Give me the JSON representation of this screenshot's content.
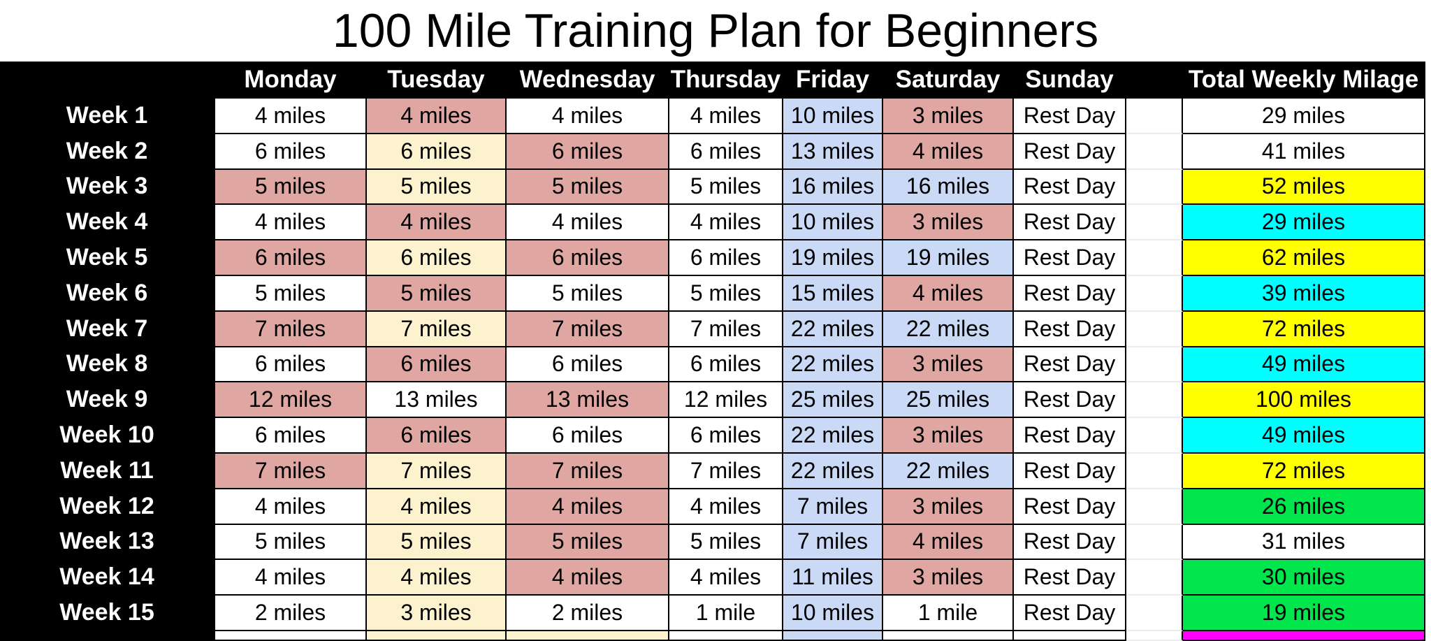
{
  "title": "100 Mile Training Plan for Beginners",
  "columns": {
    "week": "",
    "days": [
      "Monday",
      "Tuesday",
      "Wednesday",
      "Thursday",
      "Friday",
      "Saturday",
      "Sunday"
    ],
    "gap": "",
    "total": "Total Weekly Milage"
  },
  "palette": {
    "header_bg": "#000000",
    "header_text": "#ffffff",
    "grid_line": "#000000",
    "white": "#ffffff",
    "pink": "#e0a7a2",
    "cream": "#fdf2ce",
    "blue": "#c9d9f6",
    "yellow": "#ffff00",
    "cyan": "#00ffff",
    "green": "#00e64c",
    "magenta": "#ff00ff"
  },
  "weeks": [
    {
      "label": "Week 1",
      "days": [
        [
          "4 miles",
          "white"
        ],
        [
          "4 miles",
          "pink"
        ],
        [
          "4 miles",
          "white"
        ],
        [
          "4 miles",
          "white"
        ],
        [
          "10 miles",
          "blue"
        ],
        [
          "3 miles",
          "pink"
        ],
        [
          "Rest Day",
          "white"
        ]
      ],
      "total": [
        "29 miles",
        "white"
      ]
    },
    {
      "label": "Week 2",
      "days": [
        [
          "6 miles",
          "white"
        ],
        [
          "6 miles",
          "cream"
        ],
        [
          "6 miles",
          "pink"
        ],
        [
          "6 miles",
          "white"
        ],
        [
          "13 miles",
          "blue"
        ],
        [
          "4 miles",
          "pink"
        ],
        [
          "Rest Day",
          "white"
        ]
      ],
      "total": [
        "41 miles",
        "white"
      ]
    },
    {
      "label": "Week 3",
      "days": [
        [
          "5 miles",
          "pink"
        ],
        [
          "5 miles",
          "cream"
        ],
        [
          "5 miles",
          "pink"
        ],
        [
          "5 miles",
          "white"
        ],
        [
          "16 miles",
          "blue"
        ],
        [
          "16 miles",
          "blue"
        ],
        [
          "Rest Day",
          "white"
        ]
      ],
      "total": [
        "52 miles",
        "yellow"
      ]
    },
    {
      "label": "Week 4",
      "days": [
        [
          "4 miles",
          "white"
        ],
        [
          "4 miles",
          "pink"
        ],
        [
          "4 miles",
          "white"
        ],
        [
          "4 miles",
          "white"
        ],
        [
          "10 miles",
          "blue"
        ],
        [
          "3 miles",
          "pink"
        ],
        [
          "Rest Day",
          "white"
        ]
      ],
      "total": [
        "29 miles",
        "cyan"
      ]
    },
    {
      "label": "Week 5",
      "days": [
        [
          "6 miles",
          "pink"
        ],
        [
          "6 miles",
          "cream"
        ],
        [
          "6 miles",
          "pink"
        ],
        [
          "6 miles",
          "white"
        ],
        [
          "19 miles",
          "blue"
        ],
        [
          "19 miles",
          "blue"
        ],
        [
          "Rest Day",
          "white"
        ]
      ],
      "total": [
        "62 miles",
        "yellow"
      ]
    },
    {
      "label": "Week 6",
      "days": [
        [
          "5 miles",
          "white"
        ],
        [
          "5 miles",
          "pink"
        ],
        [
          "5 miles",
          "white"
        ],
        [
          "5 miles",
          "white"
        ],
        [
          "15 miles",
          "blue"
        ],
        [
          "4 miles",
          "pink"
        ],
        [
          "Rest Day",
          "white"
        ]
      ],
      "total": [
        "39 miles",
        "cyan"
      ]
    },
    {
      "label": "Week 7",
      "days": [
        [
          "7 miles",
          "pink"
        ],
        [
          "7 miles",
          "cream"
        ],
        [
          "7 miles",
          "pink"
        ],
        [
          "7 miles",
          "white"
        ],
        [
          "22 miles",
          "blue"
        ],
        [
          "22 miles",
          "blue"
        ],
        [
          "Rest Day",
          "white"
        ]
      ],
      "total": [
        "72 miles",
        "yellow"
      ]
    },
    {
      "label": "Week 8",
      "days": [
        [
          "6 miles",
          "white"
        ],
        [
          "6 miles",
          "pink"
        ],
        [
          "6 miles",
          "white"
        ],
        [
          "6 miles",
          "white"
        ],
        [
          "22 miles",
          "blue"
        ],
        [
          "3 miles",
          "pink"
        ],
        [
          "Rest Day",
          "white"
        ]
      ],
      "total": [
        "49 miles",
        "cyan"
      ]
    },
    {
      "label": "Week 9",
      "days": [
        [
          "12 miles",
          "pink"
        ],
        [
          "13 miles",
          "white"
        ],
        [
          "13 miles",
          "pink"
        ],
        [
          "12 miles",
          "white"
        ],
        [
          "25 miles",
          "blue"
        ],
        [
          "25 miles",
          "blue"
        ],
        [
          "Rest Day",
          "white"
        ]
      ],
      "total": [
        "100 miles",
        "yellow"
      ]
    },
    {
      "label": "Week 10",
      "days": [
        [
          "6 miles",
          "white"
        ],
        [
          "6 miles",
          "pink"
        ],
        [
          "6 miles",
          "white"
        ],
        [
          "6 miles",
          "white"
        ],
        [
          "22 miles",
          "blue"
        ],
        [
          "3 miles",
          "pink"
        ],
        [
          "Rest Day",
          "white"
        ]
      ],
      "total": [
        "49 miles",
        "cyan"
      ]
    },
    {
      "label": "Week 11",
      "days": [
        [
          "7 miles",
          "pink"
        ],
        [
          "7 miles",
          "cream"
        ],
        [
          "7 miles",
          "pink"
        ],
        [
          "7 miles",
          "white"
        ],
        [
          "22 miles",
          "blue"
        ],
        [
          "22 miles",
          "blue"
        ],
        [
          "Rest Day",
          "white"
        ]
      ],
      "total": [
        "72 miles",
        "yellow"
      ]
    },
    {
      "label": "Week 12",
      "days": [
        [
          "4 miles",
          "white"
        ],
        [
          "4 miles",
          "cream"
        ],
        [
          "4 miles",
          "pink"
        ],
        [
          "4 miles",
          "white"
        ],
        [
          "7 miles",
          "blue"
        ],
        [
          "3 miles",
          "pink"
        ],
        [
          "Rest Day",
          "white"
        ]
      ],
      "total": [
        "26 miles",
        "green"
      ]
    },
    {
      "label": "Week 13",
      "days": [
        [
          "5 miles",
          "white"
        ],
        [
          "5 miles",
          "cream"
        ],
        [
          "5 miles",
          "pink"
        ],
        [
          "5 miles",
          "white"
        ],
        [
          "7 miles",
          "blue"
        ],
        [
          "4 miles",
          "pink"
        ],
        [
          "Rest Day",
          "white"
        ]
      ],
      "total": [
        "31 miles",
        "white"
      ]
    },
    {
      "label": "Week 14",
      "days": [
        [
          "4 miles",
          "white"
        ],
        [
          "4 miles",
          "cream"
        ],
        [
          "4 miles",
          "pink"
        ],
        [
          "4 miles",
          "white"
        ],
        [
          "11 miles",
          "blue"
        ],
        [
          "3 miles",
          "pink"
        ],
        [
          "Rest Day",
          "white"
        ]
      ],
      "total": [
        "30 miles",
        "green"
      ]
    },
    {
      "label": "Week 15",
      "days": [
        [
          "2 miles",
          "white"
        ],
        [
          "3 miles",
          "cream"
        ],
        [
          "2 miles",
          "white"
        ],
        [
          "1 mile",
          "white"
        ],
        [
          "10 miles",
          "blue"
        ],
        [
          "1 mile",
          "white"
        ],
        [
          "Rest Day",
          "white"
        ]
      ],
      "total": [
        "19 miles",
        "green"
      ]
    }
  ],
  "partial_bottom_row": {
    "label": "",
    "days": [
      [
        "",
        "white"
      ],
      [
        "",
        "cream"
      ],
      [
        "",
        "cream"
      ],
      [
        "",
        "white"
      ],
      [
        "",
        "blue"
      ],
      [
        "",
        "white"
      ],
      [
        "",
        "white"
      ]
    ],
    "total": [
      "",
      "magenta"
    ]
  },
  "chart_data": {
    "type": "table",
    "title": "100 Mile Training Plan for Beginners",
    "columns": [
      "Week",
      "Monday",
      "Tuesday",
      "Wednesday",
      "Thursday",
      "Friday",
      "Saturday",
      "Sunday",
      "Total Weekly Milage"
    ],
    "rows": [
      [
        "Week 1",
        "4 miles",
        "4 miles",
        "4 miles",
        "4 miles",
        "10 miles",
        "3 miles",
        "Rest Day",
        "29 miles"
      ],
      [
        "Week 2",
        "6 miles",
        "6 miles",
        "6 miles",
        "6 miles",
        "13 miles",
        "4 miles",
        "Rest Day",
        "41 miles"
      ],
      [
        "Week 3",
        "5 miles",
        "5 miles",
        "5 miles",
        "5 miles",
        "16 miles",
        "16 miles",
        "Rest Day",
        "52 miles"
      ],
      [
        "Week 4",
        "4 miles",
        "4 miles",
        "4 miles",
        "4 miles",
        "10 miles",
        "3 miles",
        "Rest Day",
        "29 miles"
      ],
      [
        "Week 5",
        "6 miles",
        "6 miles",
        "6 miles",
        "6 miles",
        "19 miles",
        "19 miles",
        "Rest Day",
        "62 miles"
      ],
      [
        "Week 6",
        "5 miles",
        "5 miles",
        "5 miles",
        "5 miles",
        "15 miles",
        "4 miles",
        "Rest Day",
        "39 miles"
      ],
      [
        "Week 7",
        "7 miles",
        "7 miles",
        "7 miles",
        "7 miles",
        "22 miles",
        "22 miles",
        "Rest Day",
        "72 miles"
      ],
      [
        "Week 8",
        "6 miles",
        "6 miles",
        "6 miles",
        "6 miles",
        "22 miles",
        "3 miles",
        "Rest Day",
        "49 miles"
      ],
      [
        "Week 9",
        "12 miles",
        "13 miles",
        "13 miles",
        "12 miles",
        "25 miles",
        "25 miles",
        "Rest Day",
        "100 miles"
      ],
      [
        "Week 10",
        "6 miles",
        "6 miles",
        "6 miles",
        "6 miles",
        "22 miles",
        "3 miles",
        "Rest Day",
        "49 miles"
      ],
      [
        "Week 11",
        "7 miles",
        "7 miles",
        "7 miles",
        "7 miles",
        "22 miles",
        "22 miles",
        "Rest Day",
        "72 miles"
      ],
      [
        "Week 12",
        "4 miles",
        "4 miles",
        "4 miles",
        "4 miles",
        "7 miles",
        "3 miles",
        "Rest Day",
        "26 miles"
      ],
      [
        "Week 13",
        "5 miles",
        "5 miles",
        "5 miles",
        "5 miles",
        "7 miles",
        "4 miles",
        "Rest Day",
        "31 miles"
      ],
      [
        "Week 14",
        "4 miles",
        "4 miles",
        "4 miles",
        "4 miles",
        "11 miles",
        "3 miles",
        "Rest Day",
        "30 miles"
      ],
      [
        "Week 15",
        "2 miles",
        "3 miles",
        "2 miles",
        "1 mile",
        "10 miles",
        "1 mile",
        "Rest Day",
        "19 miles"
      ]
    ]
  }
}
